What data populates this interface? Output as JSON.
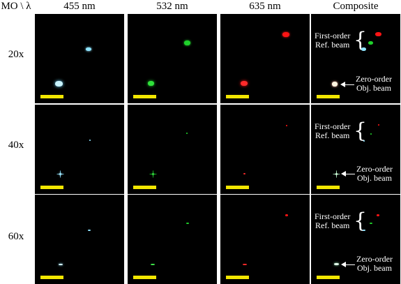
{
  "header": {
    "corner": "MO \\ λ",
    "col1": "455 nm",
    "col2": "532 nm",
    "col3": "635 nm",
    "col4": "Composite"
  },
  "rows": [
    {
      "label": "20x"
    },
    {
      "label": "40x"
    },
    {
      "label": "60x"
    }
  ],
  "annotations": {
    "first_order_line1": "First-order",
    "first_order_line2": "Ref. beam",
    "zero_order_line1": "Zero-order",
    "zero_order_line2": "Obj. beam"
  },
  "colors": {
    "background": "#000000",
    "blue_beam": "#8fe4ff",
    "green_beam": "#1fd12b",
    "red_beam": "#ff1414",
    "scale_bar": "#f2e600"
  }
}
